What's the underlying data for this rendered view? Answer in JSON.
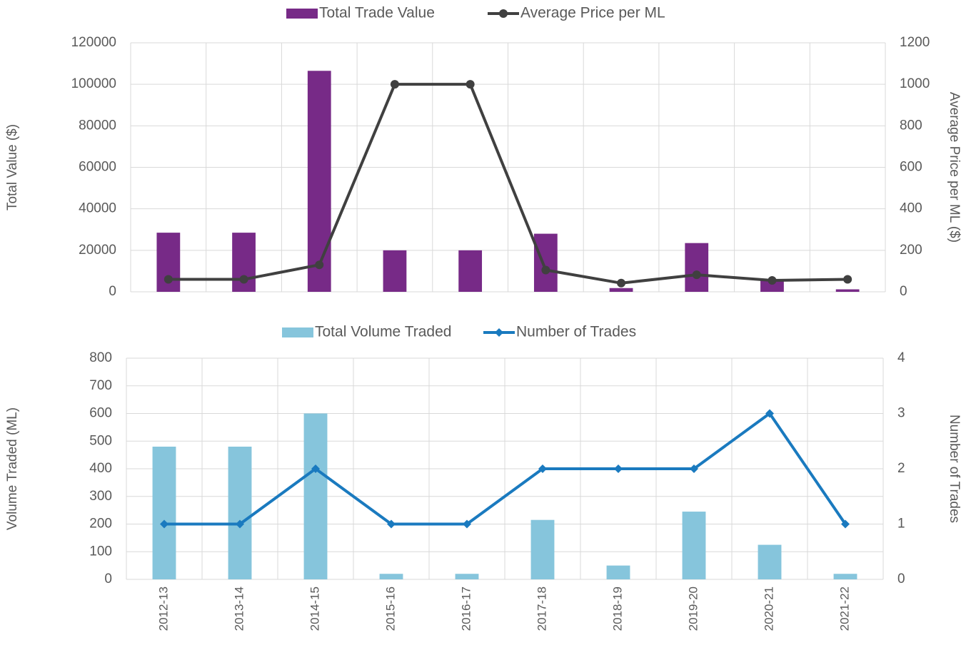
{
  "chart_data": [
    {
      "type": "combo",
      "y_label": "Total Value ($)",
      "y2_label": "Average Price per ML ($)",
      "ylim": [
        0,
        120000
      ],
      "yticks": [
        0,
        20000,
        40000,
        60000,
        80000,
        100000,
        120000
      ],
      "y2lim": [
        0,
        1200
      ],
      "y2ticks": [
        0,
        200,
        400,
        600,
        800,
        1000,
        1200
      ],
      "grid": true,
      "series": [
        {
          "name": "Total Trade Value",
          "type": "bar",
          "color": "#772a87",
          "values": [
            28500,
            28500,
            106500,
            20000,
            20000,
            28000,
            1800,
            23500,
            6000,
            1200
          ]
        },
        {
          "name": "Average Price per ML",
          "type": "line",
          "axis": "y2",
          "color": "#404040",
          "marker": "circle",
          "values": [
            60,
            60,
            130,
            1000,
            1000,
            105,
            42,
            82,
            55,
            60
          ]
        }
      ]
    },
    {
      "type": "combo",
      "y_label": "Volume Traded (ML)",
      "y2_label": "Number of Trades",
      "categories": [
        "2012-13",
        "2013-14",
        "2014-15",
        "2015-16",
        "2016-17",
        "2017-18",
        "2018-19",
        "2019-20",
        "2020-21",
        "2021-22"
      ],
      "ylim": [
        0,
        800
      ],
      "yticks": [
        0,
        100,
        200,
        300,
        400,
        500,
        600,
        700,
        800
      ],
      "y2lim": [
        0,
        4
      ],
      "y2ticks": [
        0,
        1,
        2,
        3,
        4
      ],
      "grid": true,
      "series": [
        {
          "name": "Total Volume Traded",
          "type": "bar",
          "color": "#86c5dc",
          "values": [
            480,
            480,
            600,
            20,
            20,
            215,
            50,
            245,
            125,
            20
          ]
        },
        {
          "name": "Number of Trades",
          "type": "line",
          "axis": "y2",
          "color": "#1a7abf",
          "marker": "diamond",
          "values": [
            1,
            1,
            2,
            1,
            1,
            2,
            2,
            2,
            3,
            1
          ]
        }
      ]
    }
  ]
}
